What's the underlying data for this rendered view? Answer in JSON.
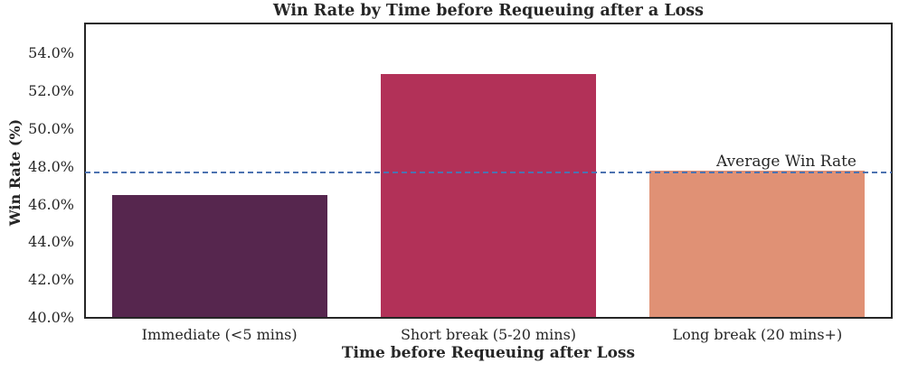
{
  "chart_data": {
    "type": "bar",
    "title": "Win Rate by Time before Requeuing after a Loss",
    "xlabel": "Time before Requeuing after Loss",
    "ylabel": "Win Rate (%)",
    "categories": [
      "Immediate (<5 mins)",
      "Short break (5-20 mins)",
      "Long break (20 mins+)"
    ],
    "values": [
      46.5,
      52.9,
      47.8
    ],
    "bar_colors": [
      "#56264E",
      "#B23158",
      "#E09175"
    ],
    "ylim": [
      40.0,
      55.6
    ],
    "yticks": [
      40.0,
      42.0,
      44.0,
      46.0,
      48.0,
      50.0,
      52.0,
      54.0
    ],
    "ytick_labels": [
      "40.0%",
      "42.0%",
      "44.0%",
      "46.0%",
      "48.0%",
      "50.0%",
      "52.0%",
      "54.0%"
    ],
    "grid": false,
    "legend_position": "none",
    "bar_width_fraction": 0.8,
    "reference_line": {
      "value": 47.7,
      "label": "Average Win Rate",
      "color": "#4C72B0",
      "style": "dashed"
    },
    "text_color": "#262626",
    "spine_color": "#262626",
    "background_color": "#FFFFFF"
  }
}
